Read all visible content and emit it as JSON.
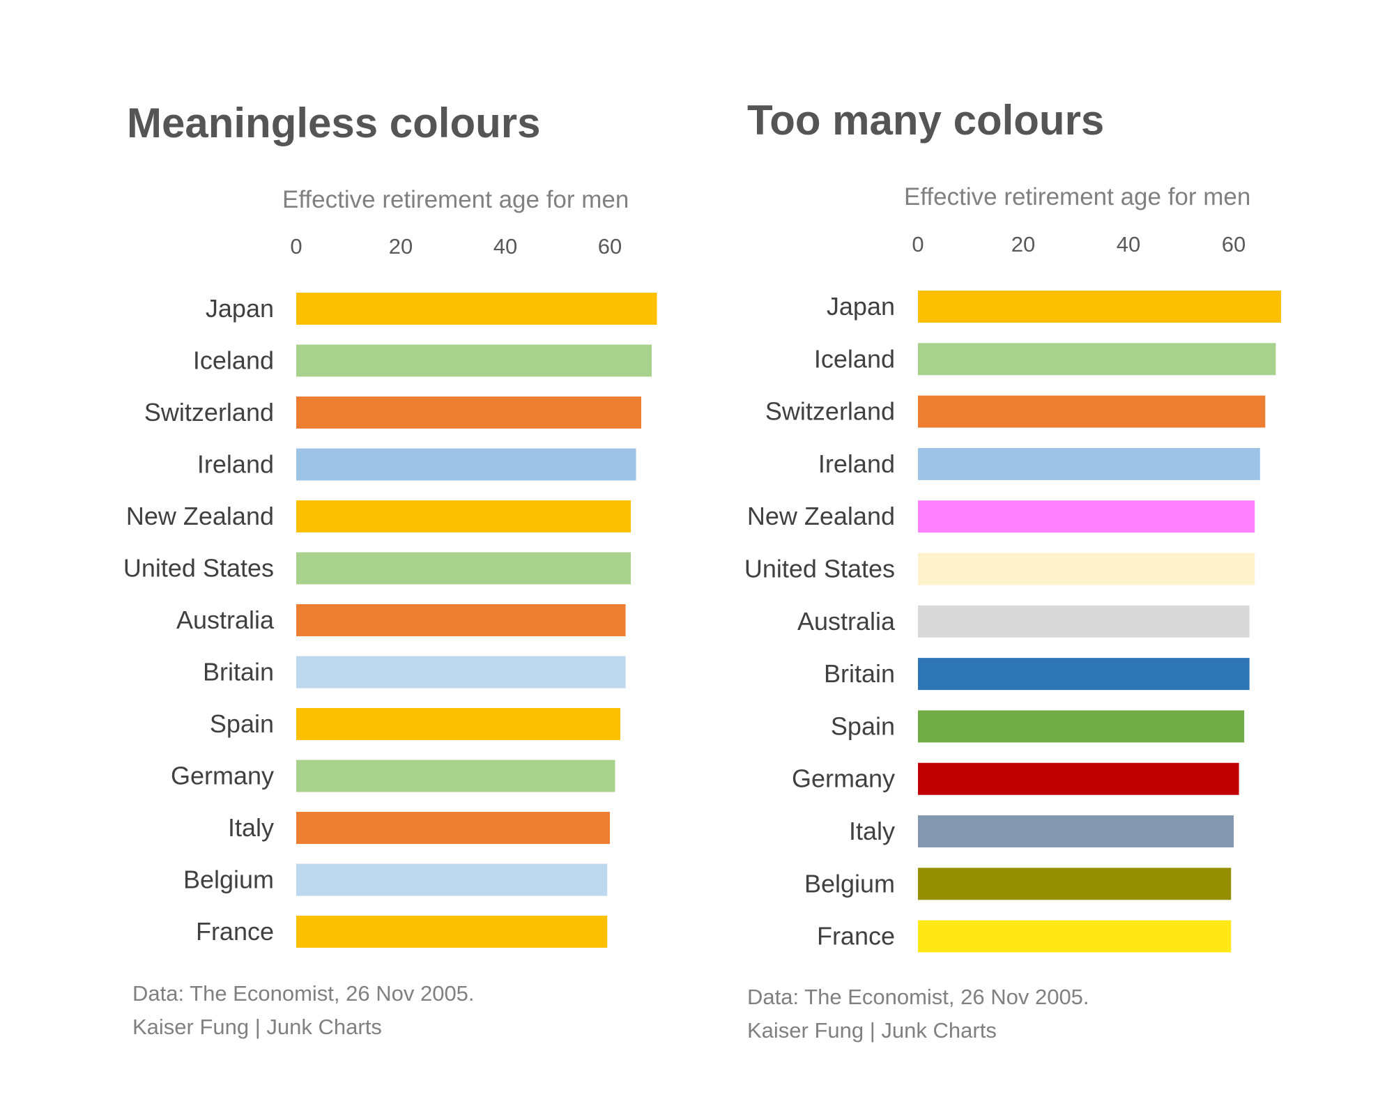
{
  "chart_data": [
    {
      "type": "bar",
      "orientation": "horizontal",
      "title": "Meaningless colours",
      "subtitle": "Effective retirement age for men",
      "xlim": [
        0,
        70
      ],
      "xticks": [
        0,
        20,
        40,
        60
      ],
      "grid": false,
      "categories": [
        "Japan",
        "Iceland",
        "Switzerland",
        "Ireland",
        "New Zealand",
        "United States",
        "Australia",
        "Britain",
        "Spain",
        "Germany",
        "Italy",
        "Belgium",
        "France"
      ],
      "values": [
        69,
        68,
        66,
        65,
        64,
        64,
        63,
        63,
        62,
        61,
        60,
        59.5,
        59.5
      ],
      "colors": [
        "#FCC000",
        "#A8D18D",
        "#ED7D31",
        "#9DC3E6",
        "#FCC000",
        "#A8D18D",
        "#ED7D31",
        "#BDD7EE",
        "#FCC000",
        "#A8D18D",
        "#ED7D31",
        "#BDD7EE",
        "#FCC000"
      ],
      "source_lines": [
        "Data: The Economist, 26 Nov 2005.",
        "Kaiser Fung | Junk Charts"
      ]
    },
    {
      "type": "bar",
      "orientation": "horizontal",
      "title": "Too many colours",
      "subtitle": "Effective retirement age for men",
      "xlim": [
        0,
        70
      ],
      "xticks": [
        0,
        20,
        40,
        60
      ],
      "grid": false,
      "categories": [
        "Japan",
        "Iceland",
        "Switzerland",
        "Ireland",
        "New Zealand",
        "United States",
        "Australia",
        "Britain",
        "Spain",
        "Germany",
        "Italy",
        "Belgium",
        "France"
      ],
      "values": [
        69,
        68,
        66,
        65,
        64,
        64,
        63,
        63,
        62,
        61,
        60,
        59.5,
        59.5
      ],
      "colors": [
        "#FCC000",
        "#A8D18D",
        "#ED7D31",
        "#9DC3E6",
        "#FF80FF",
        "#FFF2CC",
        "#D9D9D9",
        "#2E75B6",
        "#70AD47",
        "#C00000",
        "#8497B0",
        "#948F00",
        "#FFE815"
      ],
      "source_lines": [
        "Data: The Economist, 26 Nov 2005.",
        "Kaiser Fung | Junk Charts"
      ]
    }
  ]
}
